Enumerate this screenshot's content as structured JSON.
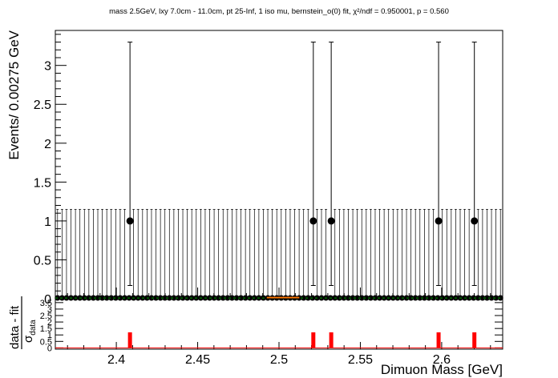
{
  "chart_data": [
    {
      "type": "scatter",
      "panel": "main",
      "title": "mass 2.5GeV, lxy 7.0cm - 11.0cm, pt 25-Inf, 1 iso mu, bernstein_o(0) fit, χ²/ndf = 0.950001, p = 0.560",
      "ylabel": "Events/ 0.00275 GeV",
      "xlim": [
        2.3625,
        2.6375
      ],
      "ylim": [
        0,
        3.45
      ],
      "x_ticks": [
        "2.4",
        "2.45",
        "2.5",
        "2.55",
        "2.6"
      ],
      "y_ticks": [
        "0",
        "0.5",
        "1",
        "1.5",
        "2",
        "2.5",
        "3"
      ],
      "bin_width": 0.00275,
      "series": [
        {
          "style": "points-with-errors",
          "x": [
            2.4084,
            2.5211,
            2.5321,
            2.5981,
            2.6201
          ],
          "y": [
            1,
            1,
            1,
            1,
            1
          ],
          "err_low": [
            0.83,
            0.83,
            0.83,
            0.83,
            0.83
          ],
          "err_high": [
            2.3,
            2.3,
            2.3,
            2.3,
            2.3
          ],
          "empty_bin_err_high": 1.15
        },
        {
          "style": "fit-curve",
          "y": [
            0.004,
            0.004
          ]
        }
      ],
      "grid": false,
      "colors": {
        "points": "#000000",
        "fit": "#00aa00",
        "highlight": "#ff7700"
      }
    },
    {
      "type": "bar",
      "panel": "pull",
      "ylabel": "data - fit / σ_data",
      "xlabel": "Dimuon Mass [GeV]",
      "ylim": [
        -0.1,
        3.8
      ],
      "y_ticks": [
        "0",
        "0.5",
        "1",
        "1.5",
        "2",
        "2.5",
        "3",
        "3.5"
      ],
      "x": [
        2.4084,
        2.5211,
        2.5321,
        2.5981,
        2.6201
      ],
      "values": [
        1.2,
        1.2,
        1.2,
        1.2,
        1.2
      ],
      "colors": {
        "bars": "#ff0000"
      }
    }
  ]
}
